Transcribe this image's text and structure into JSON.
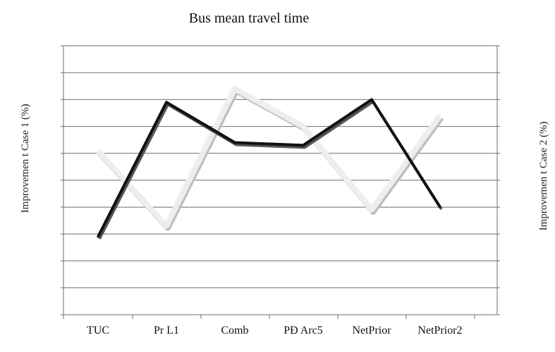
{
  "chart_data": {
    "type": "line",
    "title": "Bus mean travel time",
    "xlabel": "",
    "ylabel_left": "Improvemen t Case 1 (%)",
    "ylabel_right": "Improvemen t Case 2 (%)",
    "categories": [
      "TUC",
      "Pr L1",
      "Comb",
      "PÐ Arc5",
      "NetPrior",
      "NetPrior2"
    ],
    "ylim": [
      0,
      10
    ],
    "yticks": [
      0,
      1,
      2,
      3,
      4,
      5,
      6,
      7,
      8,
      9,
      10
    ],
    "grid": true,
    "legend": "none",
    "series": [
      {
        "values": [
          2.9,
          7.9,
          6.4,
          6.3,
          8.0,
          4.0
        ],
        "color": "#111111"
      },
      {
        "values": [
          6.1,
          3.3,
          8.4,
          7.0,
          3.9,
          7.4
        ],
        "color": "#eeeeee"
      }
    ]
  }
}
